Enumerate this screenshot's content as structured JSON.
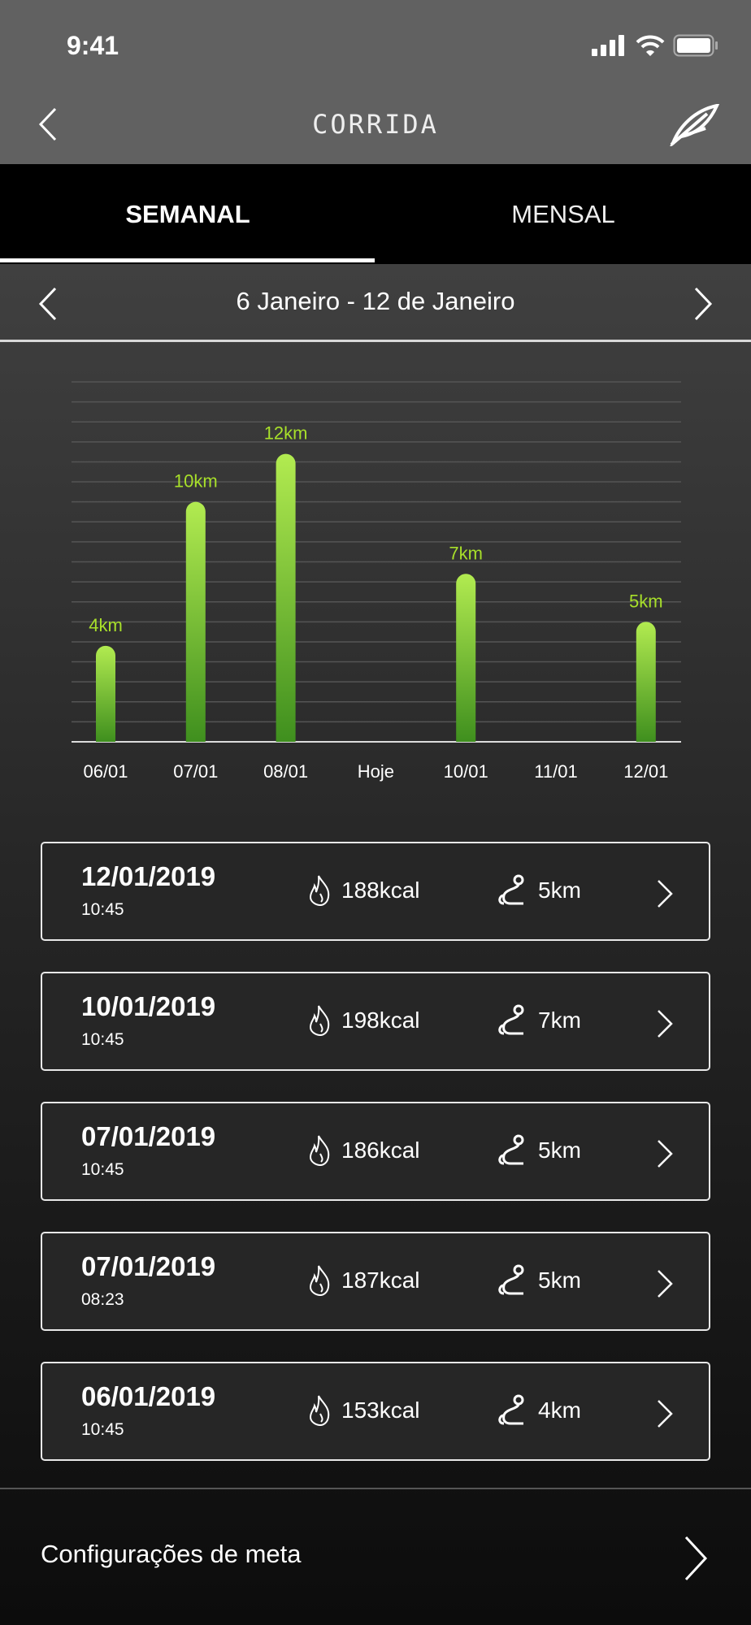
{
  "status_bar": {
    "time": "9:41",
    "icons": [
      "signal-icon",
      "wifi-icon",
      "battery-icon"
    ]
  },
  "nav": {
    "title": "CORRIDA",
    "back_icon": "chevron-left-icon",
    "logo": "feather-logo-icon"
  },
  "tabs": [
    {
      "label": "SEMANAL",
      "active": true
    },
    {
      "label": "MENSAL",
      "active": false
    }
  ],
  "date_range": {
    "label": "6 Janeiro - 12 de Janeiro"
  },
  "colors": {
    "bar_top": "#b2eb50",
    "bar_bottom": "#3f8f1e",
    "value_label": "#a8e02a"
  },
  "chart_data": {
    "type": "bar",
    "categories": [
      "06/01",
      "07/01",
      "08/01",
      "Hoje",
      "10/01",
      "11/01",
      "12/01"
    ],
    "values": [
      4,
      10,
      12,
      null,
      7,
      null,
      5
    ],
    "data_labels": [
      "4km",
      "10km",
      "12km",
      "",
      "7km",
      "",
      "5km"
    ],
    "ylim": [
      0,
      15
    ],
    "grid": true
  },
  "activities": [
    {
      "date": "12/01/2019",
      "time": "10:45",
      "kcal": "188kcal",
      "distance": "5km"
    },
    {
      "date": "10/01/2019",
      "time": "10:45",
      "kcal": "198kcal",
      "distance": "7km"
    },
    {
      "date": "07/01/2019",
      "time": "10:45",
      "kcal": "186kcal",
      "distance": "5km"
    },
    {
      "date": "07/01/2019",
      "time": "08:23",
      "kcal": "187kcal",
      "distance": "5km"
    },
    {
      "date": "06/01/2019",
      "time": "10:45",
      "kcal": "153kcal",
      "distance": "4km"
    }
  ],
  "goal_settings": {
    "label": "Configurações de meta"
  }
}
